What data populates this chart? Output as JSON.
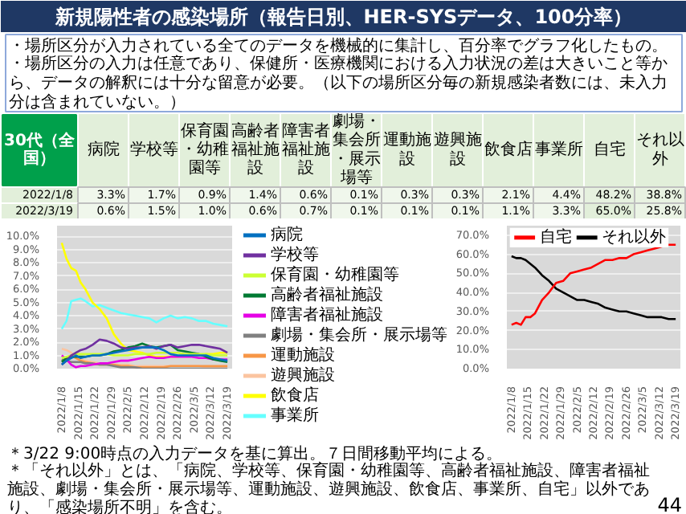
{
  "chart_data": [
    {
      "type": "other",
      "title": "新規陽性者の感染場所（報告日別、HER-SYSデータ、100分率）",
      "annotations": [
        "・場所区分が入力されている全てのデータを機械的に集計し、百分率でグラフ化したもの。",
        "・場所区分の入力は任意であり、保健所・医療機関における入力状況の差は大きいこと等から、データの解釈には十分な留意が必要。（以下の場所区分毎の新規感染者数には、未入力分は含まれていない。）"
      ]
    },
    {
      "type": "heatmap",
      "title": "30代（全国）",
      "color": "#e2efda",
      "categories": [
        "病院",
        "学校等",
        "保育園・幼稚園等",
        "高齢者福祉施設",
        "障害者福祉施設",
        "劇場・集会所・展示場等",
        "運動施設",
        "遊興施設",
        "飲食店",
        "事業所",
        "自宅",
        "それ以外"
      ],
      "y_categories": [
        "2022/1/8",
        "2022/3/19"
      ],
      "cells": [
        [
          3.3,
          1.7,
          0.9,
          1.4,
          0.6,
          0.1,
          0.3,
          0.3,
          2.1,
          4.4,
          48.2,
          38.8
        ],
        [
          0.6,
          1.5,
          1.0,
          0.6,
          0.7,
          0.1,
          0.1,
          0.1,
          1.1,
          3.3,
          65.0,
          25.8
        ]
      ],
      "cell_labels": [
        [
          "3.3%",
          "1.7%",
          "0.9%",
          "1.4%",
          "0.6%",
          "0.1%",
          "0.3%",
          "0.3%",
          "2.1%",
          "4.4%",
          "48.2%",
          "38.8%"
        ],
        [
          "0.6%",
          "1.5%",
          "1.0%",
          "0.6%",
          "0.7%",
          "0.1%",
          "0.1%",
          "0.1%",
          "1.1%",
          "3.3%",
          "65.0%",
          "25.8%"
        ]
      ]
    },
    {
      "type": "line",
      "grid": "y",
      "legend": "right",
      "xlim": [
        "2022-01-06",
        "2022-03-21"
      ],
      "ylim": [
        0,
        10.8
      ],
      "xticks": [
        {
          "value": "2022-01-08",
          "label": "2022/1/8"
        },
        {
          "value": "2022-01-15",
          "label": "2022/1/15"
        },
        {
          "value": "2022-01-22",
          "label": "2022/1/22"
        },
        {
          "value": "2022-01-29",
          "label": "2022/1/29"
        },
        {
          "value": "2022-02-05",
          "label": "2022/2/5"
        },
        {
          "value": "2022-02-12",
          "label": "2022/2/12"
        },
        {
          "value": "2022-02-19",
          "label": "2022/2/19"
        },
        {
          "value": "2022-02-26",
          "label": "2022/2/26"
        },
        {
          "value": "2022-03-05",
          "label": "2022/3/5"
        },
        {
          "value": "2022-03-12",
          "label": "2022/3/12"
        },
        {
          "value": "2022-03-19",
          "label": "2022/3/19"
        }
      ],
      "yticks": [
        {
          "value": 0,
          "label": "0.0%"
        },
        {
          "value": 1,
          "label": "1.0%"
        },
        {
          "value": 2,
          "label": "2.0%"
        },
        {
          "value": 3,
          "label": "3.0%"
        },
        {
          "value": 4,
          "label": "4.0%"
        },
        {
          "value": 5,
          "label": "5.0%"
        },
        {
          "value": 6,
          "label": "6.0%"
        },
        {
          "value": 7,
          "label": "7.0%"
        },
        {
          "value": 8,
          "label": "8.0%"
        },
        {
          "value": 9,
          "label": "9.0%"
        },
        {
          "value": 10,
          "label": "10.0%"
        }
      ],
      "x": [
        "2022-01-08",
        "2022-01-10",
        "2022-01-12",
        "2022-01-14",
        "2022-01-16",
        "2022-01-18",
        "2022-01-21",
        "2022-01-24",
        "2022-01-27",
        "2022-01-30",
        "2022-02-02",
        "2022-02-05",
        "2022-02-08",
        "2022-02-11",
        "2022-02-14",
        "2022-02-17",
        "2022-02-20",
        "2022-02-23",
        "2022-02-26",
        "2022-03-01",
        "2022-03-04",
        "2022-03-07",
        "2022-03-10",
        "2022-03-13",
        "2022-03-16",
        "2022-03-19"
      ],
      "series": [
        {
          "name": "病院",
          "color": "#0070c0",
          "values": [
            0.3,
            0.6,
            0.8,
            1.0,
            0.8,
            0.9,
            1.0,
            1.0,
            1.1,
            1.2,
            1.3,
            1.4,
            1.5,
            1.6,
            1.6,
            1.6,
            1.4,
            1.1,
            1.0,
            1.0,
            1.0,
            1.0,
            1.0,
            0.8,
            0.7,
            0.6
          ]
        },
        {
          "name": "学校等",
          "color": "#7030a0",
          "values": [
            0.3,
            0.6,
            1.0,
            1.2,
            1.4,
            1.5,
            1.8,
            2.2,
            2.1,
            1.9,
            1.6,
            1.5,
            1.6,
            1.6,
            1.7,
            1.5,
            1.7,
            1.8,
            1.6,
            1.7,
            1.8,
            1.8,
            1.7,
            1.6,
            1.5,
            1.2
          ]
        },
        {
          "name": "保育園・幼稚園等",
          "color": "#ccff33",
          "values": [
            0.8,
            0.9,
            1.0,
            1.1,
            1.1,
            1.1,
            1.1,
            1.1,
            1.1,
            1.0,
            1.0,
            1.0,
            1.1,
            1.1,
            1.1,
            1.2,
            1.2,
            1.2,
            1.2,
            1.1,
            1.1,
            1.1,
            1.1,
            1.0,
            1.0,
            1.0
          ]
        },
        {
          "name": "高齢者福祉施設",
          "color": "#007a33",
          "values": [
            0.5,
            0.8,
            0.9,
            0.9,
            0.9,
            0.9,
            1.0,
            1.0,
            1.1,
            1.3,
            1.4,
            1.6,
            1.7,
            1.9,
            1.7,
            1.6,
            1.7,
            1.8,
            1.4,
            1.3,
            1.2,
            1.1,
            0.9,
            0.7,
            0.6,
            0.5
          ]
        },
        {
          "name": "障害者福祉施設",
          "color": "#e600e6",
          "values": [
            1.0,
            0.7,
            0.3,
            0.1,
            0.2,
            0.2,
            0.3,
            0.4,
            0.4,
            0.5,
            0.6,
            0.6,
            0.7,
            0.8,
            0.9,
            0.8,
            0.8,
            0.9,
            0.9,
            0.9,
            0.9,
            0.8,
            0.8,
            0.7,
            0.7,
            0.7
          ]
        },
        {
          "name": "劇場・集会所・展示場等",
          "color": "#808080",
          "values": [
            0.7,
            0.6,
            0.5,
            0.5,
            0.5,
            0.4,
            0.4,
            0.3,
            0.3,
            0.2,
            0.1,
            0.1,
            0.1,
            0.0,
            0.0,
            0.0,
            0.0,
            0.0,
            0.0,
            0.0,
            0.0,
            0.0,
            0.0,
            0.0,
            0.0,
            0.0
          ]
        },
        {
          "name": "運動施設",
          "color": "#f79646",
          "values": [
            0.6,
            0.8,
            1.0,
            0.8,
            0.6,
            0.5,
            0.4,
            0.3,
            0.3,
            0.3,
            0.2,
            0.2,
            0.1,
            0.1,
            0.1,
            0.1,
            0.1,
            0.2,
            0.2,
            0.2,
            0.2,
            0.2,
            0.2,
            0.2,
            0.2,
            0.2
          ]
        },
        {
          "name": "遊興施設",
          "color": "#fbc4a0",
          "values": [
            1.5,
            1.4,
            1.2,
            0.9,
            0.7,
            0.6,
            0.5,
            0.4,
            0.4,
            0.3,
            0.3,
            0.3,
            0.2,
            0.2,
            0.2,
            0.2,
            0.2,
            0.2,
            0.2,
            0.2,
            0.2,
            0.2,
            0.1,
            0.1,
            0.1,
            0.1
          ]
        },
        {
          "name": "飲食店",
          "color": "#ffff00",
          "values": [
            9.5,
            8.3,
            7.6,
            7.4,
            6.5,
            6.0,
            5.0,
            4.5,
            3.8,
            2.6,
            1.9,
            1.4,
            1.3,
            1.2,
            1.0,
            0.9,
            0.9,
            0.9,
            0.9,
            1.0,
            1.0,
            1.0,
            1.1,
            1.1,
            1.2,
            1.2
          ]
        },
        {
          "name": "事業所",
          "color": "#66ffff",
          "values": [
            3.0,
            3.6,
            5.1,
            5.2,
            5.3,
            5.1,
            4.7,
            4.8,
            4.6,
            4.4,
            4.2,
            4.1,
            4.0,
            3.9,
            3.8,
            3.5,
            3.8,
            4.0,
            3.8,
            3.9,
            3.8,
            3.6,
            3.6,
            3.4,
            3.3,
            3.2
          ]
        }
      ]
    },
    {
      "type": "line",
      "grid": "y",
      "legend": "top left",
      "xlim": [
        "2022-01-06",
        "2022-03-21"
      ],
      "ylim": [
        0,
        75
      ],
      "xticks": [
        {
          "value": "2022-01-08",
          "label": "2022/1/8"
        },
        {
          "value": "2022-01-15",
          "label": "2022/1/15"
        },
        {
          "value": "2022-01-22",
          "label": "2022/1/22"
        },
        {
          "value": "2022-01-29",
          "label": "2022/1/29"
        },
        {
          "value": "2022-02-05",
          "label": "2022/2/5"
        },
        {
          "value": "2022-02-12",
          "label": "2022/2/12"
        },
        {
          "value": "2022-02-19",
          "label": "2022/2/19"
        },
        {
          "value": "2022-02-26",
          "label": "2022/2/26"
        },
        {
          "value": "2022-03-05",
          "label": "2022/3/5"
        },
        {
          "value": "2022-03-12",
          "label": "2022/3/12"
        },
        {
          "value": "2022-03-19",
          "label": "2022/3/19"
        }
      ],
      "yticks": [
        {
          "value": 0,
          "label": "0.0%"
        },
        {
          "value": 10,
          "label": "10.0%"
        },
        {
          "value": 20,
          "label": "20.0%"
        },
        {
          "value": 30,
          "label": "30.0%"
        },
        {
          "value": 40,
          "label": "40.0%"
        },
        {
          "value": 50,
          "label": "50.0%"
        },
        {
          "value": 60,
          "label": "60.0%"
        },
        {
          "value": 70,
          "label": "70.0%"
        }
      ],
      "x": [
        "2022-01-08",
        "2022-01-10",
        "2022-01-12",
        "2022-01-14",
        "2022-01-16",
        "2022-01-18",
        "2022-01-21",
        "2022-01-24",
        "2022-01-27",
        "2022-01-30",
        "2022-02-02",
        "2022-02-05",
        "2022-02-08",
        "2022-02-11",
        "2022-02-14",
        "2022-02-17",
        "2022-02-20",
        "2022-02-23",
        "2022-02-26",
        "2022-03-01",
        "2022-03-04",
        "2022-03-07",
        "2022-03-10",
        "2022-03-13",
        "2022-03-16",
        "2022-03-19"
      ],
      "series": [
        {
          "name": "自宅",
          "color": "#ff0000",
          "values": [
            23,
            24,
            23,
            27,
            27,
            29,
            36,
            40,
            45,
            46,
            50,
            51,
            52,
            53,
            55,
            57,
            57,
            58,
            58,
            60,
            61,
            62,
            63,
            64,
            65,
            65
          ]
        },
        {
          "name": "それ以外",
          "color": "#000000",
          "values": [
            59,
            58,
            58,
            57,
            55,
            53,
            49,
            46,
            42,
            40,
            38,
            36,
            36,
            35,
            34,
            32,
            31,
            30,
            30,
            29,
            28,
            27,
            27,
            27,
            26,
            26
          ]
        }
      ]
    },
    {
      "type": "other",
      "annotations": [
        "＊3/22 9:00時点の入力データを基に算出。７日間移動平均による。",
        "＊「それ以外」とは、「病院、学校等、保育園・幼稚園等、高齢者福祉施設、障害者福祉施設、劇場・集会所・展示場等、運動施設、遊興施設、飲食店、事業所、自宅」以外であり、「感染場所不明」を含む。",
        "44"
      ]
    }
  ]
}
